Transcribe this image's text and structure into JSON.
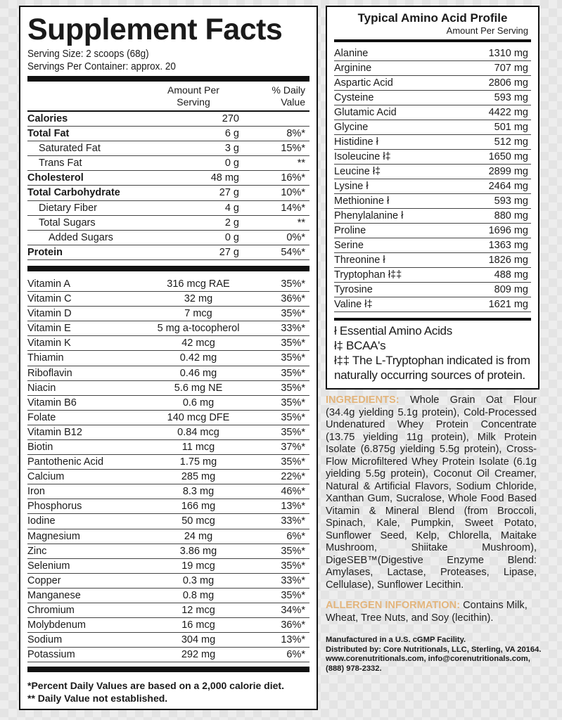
{
  "facts": {
    "title": "Supplement Facts",
    "serving_size": "Serving Size: 2 scoops (68g)",
    "servings_per_container": "Servings Per Container: approx. 20",
    "col_amount": "Amount Per Serving",
    "col_dv": "% Daily Value",
    "macros": [
      {
        "name": "Calories",
        "amount": "270",
        "dv": "",
        "bold": true,
        "indent": 0
      },
      {
        "name": "Total Fat",
        "amount": "6 g",
        "dv": "8%*",
        "bold": true,
        "indent": 0
      },
      {
        "name": "Saturated Fat",
        "amount": "3 g",
        "dv": "15%*",
        "bold": false,
        "indent": 1
      },
      {
        "name": "Trans Fat",
        "amount": "0 g",
        "dv": "**",
        "bold": false,
        "indent": 1
      },
      {
        "name": "Cholesterol",
        "amount": "48 mg",
        "dv": "16%*",
        "bold": true,
        "indent": 0
      },
      {
        "name": "Total Carbohydrate",
        "amount": "27 g",
        "dv": "10%*",
        "bold": true,
        "indent": 0
      },
      {
        "name": "Dietary Fiber",
        "amount": "4 g",
        "dv": "14%*",
        "bold": false,
        "indent": 1
      },
      {
        "name": "Total Sugars",
        "amount": "2 g",
        "dv": "**",
        "bold": false,
        "indent": 1
      },
      {
        "name": "Added Sugars",
        "amount": "0 g",
        "dv": "0%*",
        "bold": false,
        "indent": 2
      },
      {
        "name": "Protein",
        "amount": "27 g",
        "dv": "54%*",
        "bold": true,
        "indent": 0
      }
    ],
    "micros": [
      {
        "name": "Vitamin A",
        "amount": "316 mcg RAE",
        "dv": "35%*"
      },
      {
        "name": "Vitamin C",
        "amount": "32 mg",
        "dv": "36%*"
      },
      {
        "name": "Vitamin D",
        "amount": "7 mcg",
        "dv": "35%*"
      },
      {
        "name": "Vitamin E",
        "amount": "5 mg a-tocopherol",
        "dv": "33%*"
      },
      {
        "name": "Vitamin K",
        "amount": "42 mcg",
        "dv": "35%*"
      },
      {
        "name": "Thiamin",
        "amount": "0.42 mg",
        "dv": "35%*"
      },
      {
        "name": "Riboflavin",
        "amount": "0.46 mg",
        "dv": "35%*"
      },
      {
        "name": "Niacin",
        "amount": "5.6 mg NE",
        "dv": "35%*"
      },
      {
        "name": "Vitamin B6",
        "amount": "0.6 mg",
        "dv": "35%*"
      },
      {
        "name": "Folate",
        "amount": "140 mcg DFE",
        "dv": "35%*"
      },
      {
        "name": "Vitamin B12",
        "amount": "0.84 mcg",
        "dv": "35%*"
      },
      {
        "name": "Biotin",
        "amount": "11 mcg",
        "dv": "37%*"
      },
      {
        "name": "Pantothenic Acid",
        "amount": "1.75 mg",
        "dv": "35%*"
      },
      {
        "name": "Calcium",
        "amount": "285 mg",
        "dv": "22%*"
      },
      {
        "name": "Iron",
        "amount": "8.3 mg",
        "dv": "46%*"
      },
      {
        "name": "Phosphorus",
        "amount": "166 mg",
        "dv": "13%*"
      },
      {
        "name": "Iodine",
        "amount": "50 mcg",
        "dv": "33%*"
      },
      {
        "name": "Magnesium",
        "amount": "24 mg",
        "dv": "6%*"
      },
      {
        "name": "Zinc",
        "amount": "3.86 mg",
        "dv": "35%*"
      },
      {
        "name": "Selenium",
        "amount": "19 mcg",
        "dv": "35%*"
      },
      {
        "name": "Copper",
        "amount": "0.3 mg",
        "dv": "33%*"
      },
      {
        "name": "Manganese",
        "amount": "0.8 mg",
        "dv": "35%*"
      },
      {
        "name": "Chromium",
        "amount": "12 mcg",
        "dv": "34%*"
      },
      {
        "name": "Molybdenum",
        "amount": "16 mcg",
        "dv": "36%*"
      },
      {
        "name": "Sodium",
        "amount": "304 mg",
        "dv": "13%*"
      },
      {
        "name": "Potassium",
        "amount": "292 mg",
        "dv": "6%*"
      }
    ],
    "footnote1": "*Percent Daily Values are based on a 2,000 calorie diet.",
    "footnote2": "** Daily Value not established."
  },
  "amino": {
    "title": "Typical Amino Acid Profile",
    "subtitle": "Amount Per Serving",
    "rows": [
      {
        "name": "Alanine",
        "amount": "1310 mg"
      },
      {
        "name": "Arginine",
        "amount": "707 mg"
      },
      {
        "name": "Aspartic Acid",
        "amount": "2806 mg"
      },
      {
        "name": "Cysteine",
        "amount": "593 mg"
      },
      {
        "name": "Glutamic Acid",
        "amount": "4422 mg"
      },
      {
        "name": "Glycine",
        "amount": "501 mg"
      },
      {
        "name": "Histidine ł",
        "amount": "512 mg"
      },
      {
        "name": "Isoleucine ł‡",
        "amount": "1650 mg"
      },
      {
        "name": "Leucine ł‡",
        "amount": "2899 mg"
      },
      {
        "name": "Lysine ł",
        "amount": "2464 mg"
      },
      {
        "name": "Methionine ł",
        "amount": "593 mg"
      },
      {
        "name": "Phenylalanine ł",
        "amount": "880 mg"
      },
      {
        "name": "Proline",
        "amount": "1696 mg"
      },
      {
        "name": "Serine",
        "amount": "1363 mg"
      },
      {
        "name": "Threonine ł",
        "amount": "1826 mg"
      },
      {
        "name": "Tryptophan ł‡‡",
        "amount": "488 mg"
      },
      {
        "name": "Tyrosine",
        "amount": "809 mg"
      },
      {
        "name": "Valine ł‡",
        "amount": "1621 mg"
      }
    ],
    "note1": "ł Essential Amino Acids",
    "note2": "ł‡ BCAA's",
    "note3": "ł‡‡ The L-Tryptophan indicated is from naturally occurring sources of protein."
  },
  "ingredients": {
    "label": "INGREDIENTS:",
    "text": " Whole Grain Oat Flour (34.4g yielding 5.1g protein), Cold-Processed Undenatured Whey Protein Concentrate (13.75 yielding 11g protein), Milk Protein Isolate (6.875g yielding 5.5g protein), Cross-Flow Microfiltered Whey Protein Isolate (6.1g yielding 5.5g protein), Coconut Oil Creamer, Natural & Artificial Flavors, Sodium Chloride, Xanthan Gum, Sucralose, Whole Food Based Vitamin & Mineral Blend (from Broccoli, Spinach, Kale, Pumpkin, Sweet Potato, Sunflower Seed, Kelp, Chlorella, Maitake Mushroom, Shiitake Mushroom), DigeSEB™(Digestive Enzyme Blend: Amylases, Lactase, Proteases, Lipase, Cellulase), Sunflower Lecithin."
  },
  "allergen": {
    "label": "ALLERGEN INFORMATION:",
    "text": " Contains Milk, Wheat, Tree Nuts, and Soy (lecithin)."
  },
  "manufacturer": {
    "line1": "Manufactured in a U.S. cGMP Facility.",
    "line2": "Distributed by: Core Nutritionals, LLC, Sterling, VA 20164.",
    "line3": "www.corenutritionals.com, info@corenutritionals.com,",
    "line4": "(888) 978-2332."
  },
  "colors": {
    "label_accent": "#e3b57c",
    "border": "#111111"
  }
}
